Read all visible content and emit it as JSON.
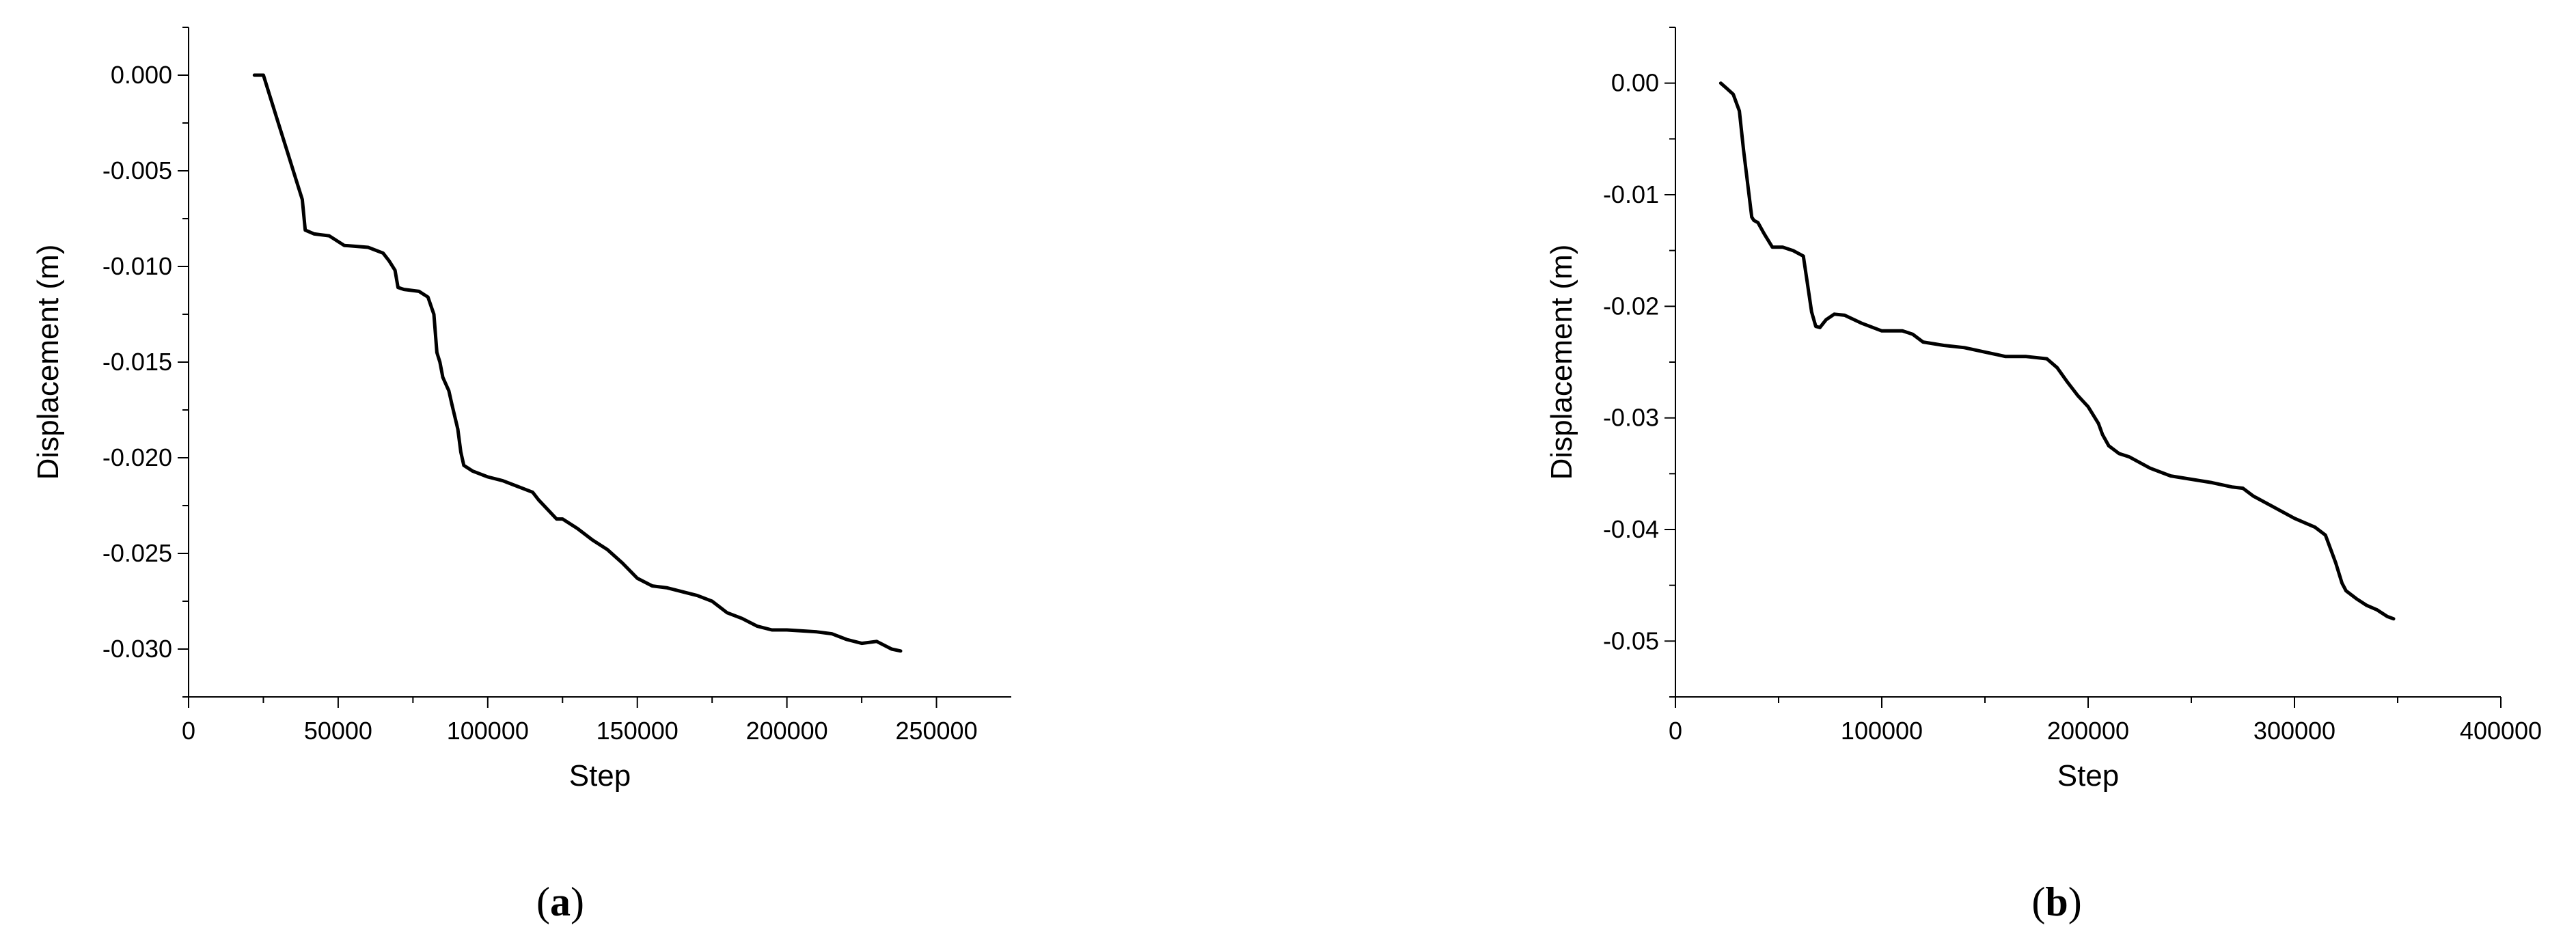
{
  "chart_data": [
    {
      "type": "line",
      "caption_letter": "a",
      "xlabel": "Step",
      "ylabel": "Displacement (m)",
      "xlim": [
        0,
        275000
      ],
      "ylim": [
        -0.0325,
        0.0025
      ],
      "xticks": [
        0,
        50000,
        100000,
        150000,
        200000,
        250000
      ],
      "xtick_labels": [
        "0",
        "50000",
        "100000",
        "150000",
        "200000",
        "250000"
      ],
      "yticks": [
        0.0,
        -0.005,
        -0.01,
        -0.015,
        -0.02,
        -0.025,
        -0.03
      ],
      "ytick_labels": [
        "0.000",
        "-0.005",
        "-0.010",
        "-0.015",
        "-0.020",
        "-0.025",
        "-0.030"
      ],
      "grid": false,
      "series": [
        {
          "color": "#000000",
          "x": [
            22000,
            25000,
            27000,
            30000,
            33000,
            36000,
            38000,
            39000,
            42000,
            47000,
            52000,
            60000,
            65000,
            67000,
            69000,
            70000,
            72000,
            77000,
            80000,
            82000,
            83000,
            84000,
            85000,
            87000,
            88000,
            90000,
            91000,
            92000,
            93000,
            95000,
            100000,
            105000,
            110000,
            115000,
            117000,
            120000,
            123000,
            125000,
            130000,
            135000,
            140000,
            145000,
            150000,
            155000,
            160000,
            170000,
            175000,
            180000,
            185000,
            190000,
            195000,
            200000,
            210000,
            215000,
            220000,
            225000,
            230000,
            235000,
            238000
          ],
          "y": [
            0.0,
            0.0,
            -0.001,
            -0.0025,
            -0.004,
            -0.0055,
            -0.0065,
            -0.0081,
            -0.0083,
            -0.0084,
            -0.0089,
            -0.009,
            -0.0093,
            -0.0097,
            -0.0102,
            -0.0111,
            -0.0112,
            -0.0113,
            -0.0116,
            -0.0125,
            -0.0145,
            -0.015,
            -0.0158,
            -0.0165,
            -0.0172,
            -0.0185,
            -0.0197,
            -0.0204,
            -0.0205,
            -0.0207,
            -0.021,
            -0.0212,
            -0.0215,
            -0.0218,
            -0.0222,
            -0.0227,
            -0.0232,
            -0.0232,
            -0.0237,
            -0.0243,
            -0.0248,
            -0.0255,
            -0.0263,
            -0.0267,
            -0.0268,
            -0.0272,
            -0.0275,
            -0.0281,
            -0.0284,
            -0.0288,
            -0.029,
            -0.029,
            -0.0291,
            -0.0292,
            -0.0295,
            -0.0297,
            -0.0296,
            -0.03,
            -0.0301
          ]
        }
      ]
    },
    {
      "type": "line",
      "caption_letter": "b",
      "xlabel": "Step",
      "ylabel": "Displacement (m)",
      "xlim": [
        0,
        400000
      ],
      "ylim": [
        -0.055,
        0.005
      ],
      "xticks": [
        0,
        100000,
        200000,
        300000,
        400000
      ],
      "xtick_labels": [
        "0",
        "100000",
        "200000",
        "300000",
        "400000"
      ],
      "yticks": [
        0.0,
        -0.01,
        -0.02,
        -0.03,
        -0.04,
        -0.05
      ],
      "ytick_labels": [
        "0.00",
        "-0.01",
        "-0.02",
        "-0.03",
        "-0.04",
        "-0.05"
      ],
      "grid": false,
      "series": [
        {
          "color": "#000000",
          "x": [
            22000,
            25000,
            28000,
            31000,
            33000,
            35000,
            37000,
            38000,
            40000,
            43000,
            47000,
            52000,
            57000,
            62000,
            64000,
            66000,
            68000,
            70000,
            73000,
            77000,
            82000,
            90000,
            100000,
            110000,
            115000,
            120000,
            130000,
            140000,
            150000,
            160000,
            170000,
            180000,
            185000,
            190000,
            195000,
            200000,
            205000,
            207000,
            210000,
            215000,
            220000,
            230000,
            240000,
            250000,
            260000,
            270000,
            275000,
            280000,
            290000,
            300000,
            310000,
            315000,
            318000,
            320000,
            323000,
            325000,
            330000,
            335000,
            340000,
            345000,
            348000
          ],
          "y": [
            0.0,
            -0.0005,
            -0.001,
            -0.0025,
            -0.006,
            -0.009,
            -0.012,
            -0.0123,
            -0.0125,
            -0.0135,
            -0.0147,
            -0.0147,
            -0.015,
            -0.0155,
            -0.018,
            -0.0205,
            -0.0218,
            -0.0219,
            -0.0212,
            -0.0207,
            -0.0208,
            -0.0215,
            -0.0222,
            -0.0222,
            -0.0225,
            -0.0232,
            -0.0235,
            -0.0237,
            -0.0241,
            -0.0245,
            -0.0245,
            -0.0247,
            -0.0255,
            -0.0268,
            -0.028,
            -0.029,
            -0.0305,
            -0.0315,
            -0.0325,
            -0.0332,
            -0.0335,
            -0.0345,
            -0.0352,
            -0.0355,
            -0.0358,
            -0.0362,
            -0.0363,
            -0.037,
            -0.038,
            -0.039,
            -0.0398,
            -0.0405,
            -0.042,
            -0.043,
            -0.0448,
            -0.0455,
            -0.0462,
            -0.0468,
            -0.0472,
            -0.0478,
            -0.048
          ]
        }
      ]
    }
  ]
}
